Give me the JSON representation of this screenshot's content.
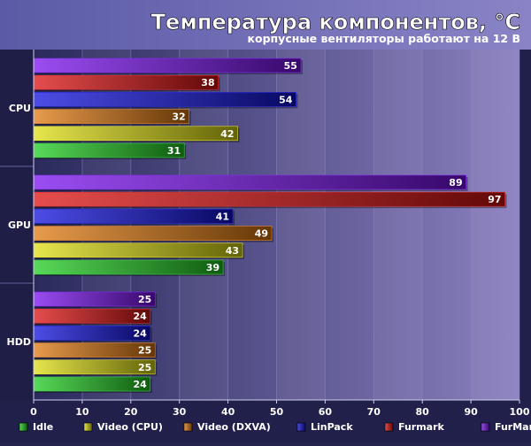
{
  "chart_data": {
    "type": "bar",
    "orientation": "horizontal",
    "title": "Температура компонентов, °C",
    "subtitle": "корпусные вентиляторы работают на 12 В",
    "categories": [
      "CPU",
      "GPU",
      "HDD"
    ],
    "xlim": [
      0,
      100
    ],
    "x_ticks": [
      0,
      10,
      20,
      30,
      40,
      50,
      60,
      70,
      80,
      90,
      100
    ],
    "grid": true,
    "legend_position": "bottom",
    "series": [
      {
        "name": "Idle",
        "color": "#22cc22",
        "values": [
          31,
          39,
          24
        ]
      },
      {
        "name": "Video (CPU)",
        "color": "#dddd11",
        "values": [
          42,
          43,
          25
        ]
      },
      {
        "name": "Video (DXVA)",
        "color": "#e07a10",
        "values": [
          32,
          49,
          25
        ]
      },
      {
        "name": "LinPack",
        "color": "#1111dd",
        "values": [
          54,
          41,
          24
        ]
      },
      {
        "name": "Furmark",
        "color": "#dd1111",
        "values": [
          38,
          97,
          24
        ]
      },
      {
        "name": "FurMark+LinPack",
        "color": "#7a11ee",
        "values": [
          55,
          89,
          25
        ]
      }
    ]
  }
}
